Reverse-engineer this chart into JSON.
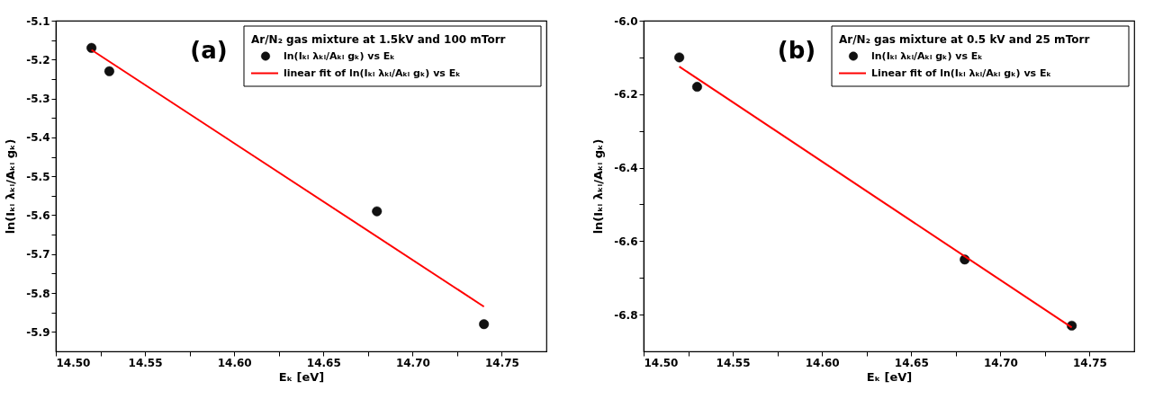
{
  "chart_data": [
    {
      "type": "scatter",
      "annotations": [
        "(a)"
      ],
      "xlabel": "Eₖ [eV]",
      "ylabel": "ln(Iₖᵢ λₖᵢ/Aₖᵢ gₖ)",
      "legend_title": "Ar/N₂ gas mixture at 1.5kV and 100 mTorr",
      "legend": "top right",
      "grid": false,
      "xlim": [
        14.5,
        14.775
      ],
      "ylim": [
        -5.95,
        -5.1
      ],
      "xticks": [
        {
          "value": 14.5,
          "label": "14.50"
        },
        {
          "value": 14.525,
          "label": null
        },
        {
          "value": 14.55,
          "label": "14.55"
        },
        {
          "value": 14.575,
          "label": null
        },
        {
          "value": 14.6,
          "label": "14.60"
        },
        {
          "value": 14.625,
          "label": null
        },
        {
          "value": 14.65,
          "label": "14.65"
        },
        {
          "value": 14.675,
          "label": null
        },
        {
          "value": 14.7,
          "label": "14.70"
        },
        {
          "value": 14.725,
          "label": null
        },
        {
          "value": 14.75,
          "label": "14.75"
        }
      ],
      "yticks": [
        -5.1,
        {
          "value": -5.15,
          "label": null
        },
        -5.2,
        {
          "value": -5.25,
          "label": null
        },
        -5.3,
        {
          "value": -5.35,
          "label": null
        },
        -5.4,
        {
          "value": -5.45,
          "label": null
        },
        -5.5,
        {
          "value": -5.55,
          "label": null
        },
        -5.6,
        {
          "value": -5.65,
          "label": null
        },
        -5.7,
        {
          "value": -5.75,
          "label": null
        },
        -5.8,
        {
          "value": -5.85,
          "label": null
        },
        -5.9
      ],
      "series": [
        {
          "name": "ln(Iₖᵢ λₖᵢ/Aₖᵢ gₖ) vs Eₖ",
          "type": "scatter",
          "marker": "circle",
          "color": "#111111",
          "x": [
            14.52,
            14.53,
            14.68,
            14.74
          ],
          "values": [
            -5.17,
            -5.23,
            -5.59,
            -5.88
          ]
        },
        {
          "name": "linear fit of ln(Iₖᵢ λₖᵢ/Aₖᵢ gₖ) vs Eₖ",
          "type": "line",
          "color": "#ff0000",
          "line_style": "solid",
          "x": [
            14.52,
            14.74
          ],
          "values": [
            -5.175,
            -5.835
          ]
        }
      ]
    },
    {
      "type": "scatter",
      "annotations": [
        "(b)"
      ],
      "xlabel": "Eₖ [eV]",
      "ylabel": "ln(Iₖᵢ λₖᵢ/Aₖᵢ gₖ)",
      "legend_title": "Ar/N₂ gas mixture at 0.5 kV and 25 mTorr",
      "legend": "top right",
      "grid": false,
      "xlim": [
        14.5,
        14.775
      ],
      "ylim": [
        -6.9,
        -6.0
      ],
      "xticks": [
        {
          "value": 14.5,
          "label": "14.50"
        },
        {
          "value": 14.525,
          "label": null
        },
        {
          "value": 14.55,
          "label": "14.55"
        },
        {
          "value": 14.575,
          "label": null
        },
        {
          "value": 14.6,
          "label": "14.60"
        },
        {
          "value": 14.625,
          "label": null
        },
        {
          "value": 14.65,
          "label": "14.65"
        },
        {
          "value": 14.675,
          "label": null
        },
        {
          "value": 14.7,
          "label": "14.70"
        },
        {
          "value": 14.725,
          "label": null
        },
        {
          "value": 14.75,
          "label": "14.75"
        }
      ],
      "yticks": [
        {
          "value": -6.0,
          "label": "-6.0"
        },
        {
          "value": -6.1,
          "label": null
        },
        -6.2,
        {
          "value": -6.3,
          "label": null
        },
        -6.4,
        {
          "value": -6.5,
          "label": null
        },
        -6.6,
        {
          "value": -6.7,
          "label": null
        },
        -6.8
      ],
      "series": [
        {
          "name": "ln(Iₖᵢ λₖᵢ/Aₖᵢ gₖ) vs Eₖ",
          "type": "scatter",
          "marker": "circle",
          "color": "#111111",
          "x": [
            14.52,
            14.53,
            14.68,
            14.74
          ],
          "values": [
            -6.1,
            -6.18,
            -6.65,
            -6.83
          ]
        },
        {
          "name": "Linear fit of ln(Iₖᵢ λₖᵢ/Aₖᵢ gₖ) vs Eₖ",
          "type": "line",
          "color": "#ff0000",
          "line_style": "solid",
          "x": [
            14.52,
            14.74
          ],
          "values": [
            -6.125,
            -6.835
          ]
        }
      ]
    }
  ]
}
